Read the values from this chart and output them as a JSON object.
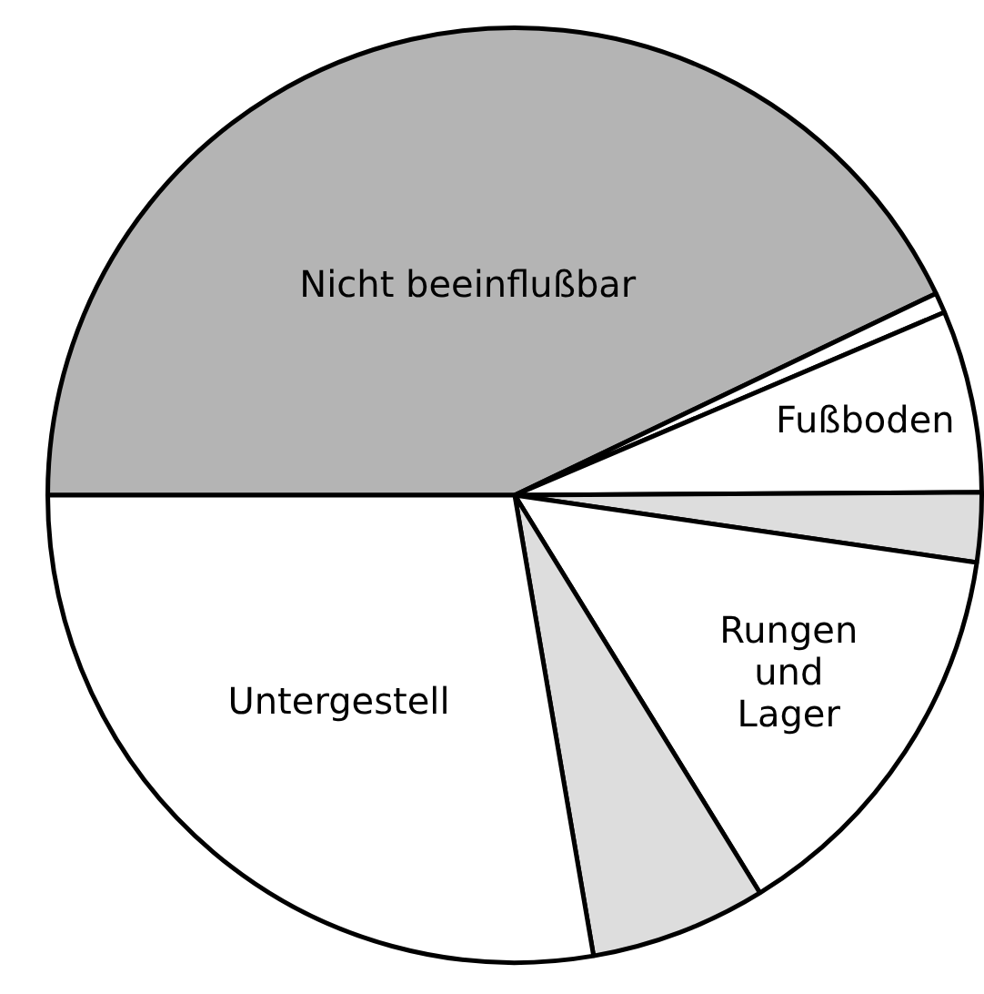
{
  "chart_data": {
    "type": "pie",
    "categories": [
      "Nicht beeinflußbar",
      null,
      "Fußboden",
      null,
      "Rungen und Lager",
      null,
      "Untergestell"
    ],
    "values": [
      42.9,
      0.7,
      6.3,
      2.4,
      13.9,
      6.1,
      27.7
    ],
    "colors": [
      "#b4b4b4",
      "#ffffff",
      "#ffffff",
      "#dddddd",
      "#ffffff",
      "#dddddd",
      "#ffffff"
    ]
  }
}
